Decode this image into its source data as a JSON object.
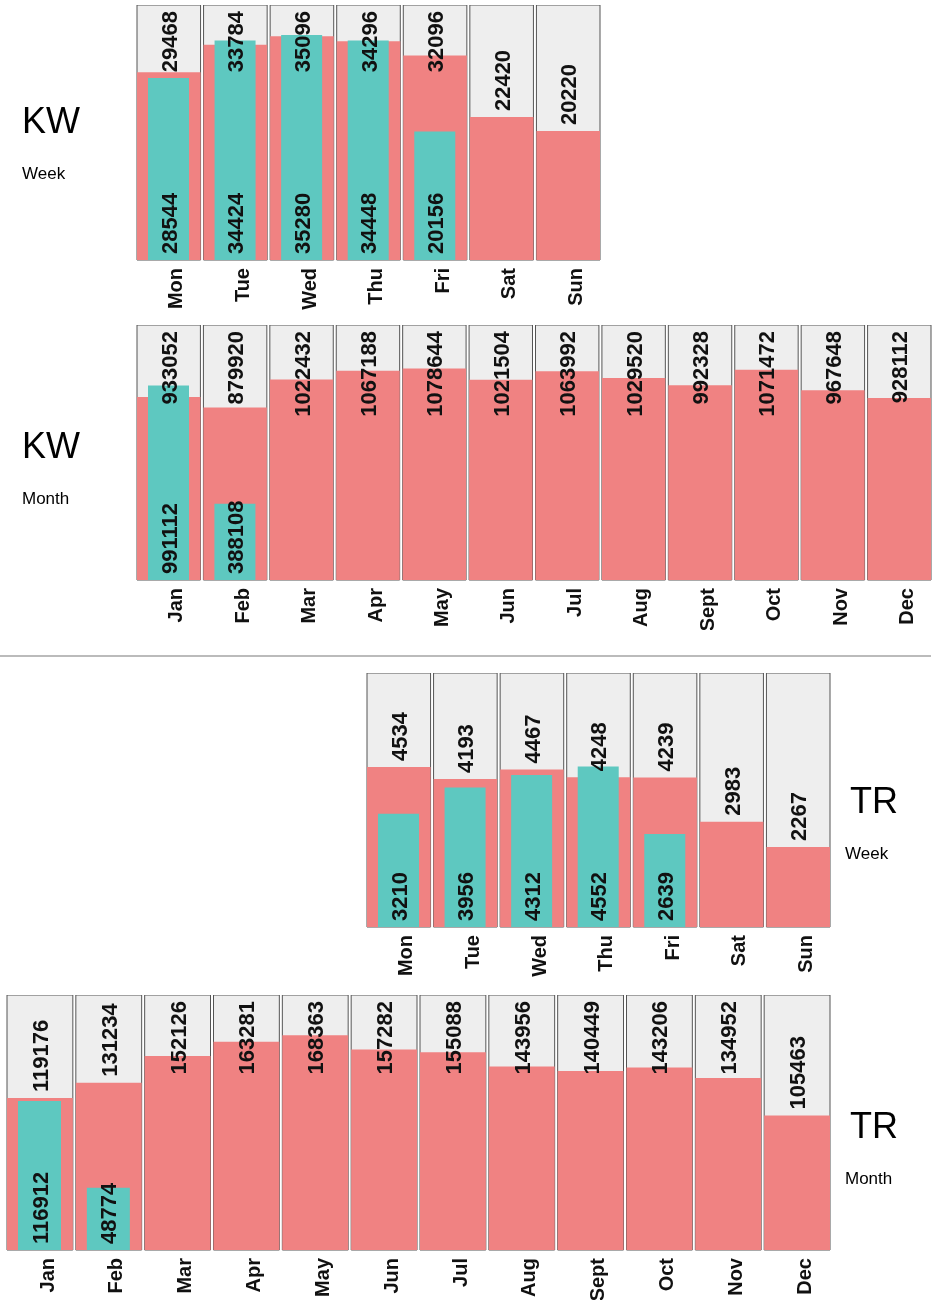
{
  "chart_data": [
    {
      "type": "bar",
      "title": "KW",
      "subtitle": "Week",
      "categories": [
        "Mon",
        "Tue",
        "Wed",
        "Thu",
        "Fri",
        "Sat",
        "Sun"
      ],
      "series": [
        {
          "color": "#f08282",
          "values": [
            29468,
            33784,
            35096,
            34296,
            32096,
            22420,
            20220
          ]
        },
        {
          "color": "#5ec8c0",
          "values": [
            28544,
            34424,
            35280,
            34448,
            20156,
            null,
            null
          ]
        }
      ],
      "ylim": [
        0,
        40000
      ],
      "data_labels": true,
      "tick_labels": "x"
    },
    {
      "type": "bar",
      "title": "KW",
      "subtitle": "Month",
      "categories": [
        "Jan",
        "Feb",
        "Mar",
        "Apr",
        "May",
        "Jun",
        "Jul",
        "Aug",
        "Sept",
        "Oct",
        "Nov",
        "Dec"
      ],
      "series": [
        {
          "color": "#f08282",
          "values": [
            933052,
            879920,
            1022432,
            1067188,
            1078644,
            1021504,
            1063992,
            1029520,
            992328,
            1071472,
            967648,
            928112
          ]
        },
        {
          "color": "#5ec8c0",
          "values": [
            991112,
            388108,
            null,
            null,
            null,
            null,
            null,
            null,
            null,
            null,
            null,
            null
          ]
        }
      ],
      "ylim": [
        0,
        1300000
      ],
      "data_labels": true,
      "tick_labels": "x"
    },
    {
      "type": "bar",
      "title": "TR",
      "subtitle": "Week",
      "categories": [
        "Mon",
        "Tue",
        "Wed",
        "Thu",
        "Fri",
        "Sat",
        "Sun"
      ],
      "series": [
        {
          "color": "#f08282",
          "values": [
            4534,
            4193,
            4467,
            4248,
            4239,
            2983,
            2267
          ]
        },
        {
          "color": "#5ec8c0",
          "values": [
            3210,
            3956,
            4312,
            4552,
            2639,
            null,
            null
          ]
        }
      ],
      "ylim": [
        0,
        7200
      ],
      "data_labels": true,
      "tick_labels": "x"
    },
    {
      "type": "bar",
      "title": "TR",
      "subtitle": "Month",
      "categories": [
        "Jan",
        "Feb",
        "Mar",
        "Apr",
        "May",
        "Jun",
        "Jul",
        "Aug",
        "Sept",
        "Oct",
        "Nov",
        "Dec"
      ],
      "series": [
        {
          "color": "#f08282",
          "values": [
            119176,
            131234,
            152126,
            163281,
            168363,
            157282,
            155088,
            143956,
            140449,
            143206,
            134952,
            105463
          ]
        },
        {
          "color": "#5ec8c0",
          "values": [
            116912,
            48774,
            null,
            null,
            null,
            null,
            null,
            null,
            null,
            null,
            null,
            null
          ]
        }
      ],
      "ylim": [
        0,
        200000
      ],
      "data_labels": true,
      "tick_labels": "x"
    }
  ]
}
